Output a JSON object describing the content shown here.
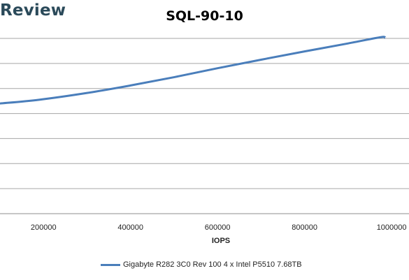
{
  "brand": {
    "text": "Review"
  },
  "chart_data": {
    "type": "line",
    "title": "SQL-90-10",
    "xlabel": "IOPS",
    "ylabel": "",
    "x_ticks": [
      200000,
      400000,
      600000,
      800000,
      1000000
    ],
    "x_tick_labels": [
      "200000",
      "400000",
      "600000",
      "800000",
      "1000000"
    ],
    "xlim": [
      100000,
      1040000
    ],
    "ylim": [
      0,
      7
    ],
    "y_gridlines": [
      0,
      1,
      2,
      3,
      4,
      5,
      6,
      7
    ],
    "grid": true,
    "legend": "bottom",
    "series": [
      {
        "name": "Gigabyte R282 3C0 Rev 100 4 x Intel P5510 7.68TB",
        "color": "#4a7ebb",
        "x": [
          100000,
          190000,
          300000,
          400000,
          500000,
          600000,
          700000,
          800000,
          900000,
          975000,
          985000
        ],
        "y": [
          4.4,
          4.55,
          4.82,
          5.12,
          5.45,
          5.81,
          6.15,
          6.48,
          6.8,
          7.05,
          7.02
        ]
      }
    ]
  }
}
